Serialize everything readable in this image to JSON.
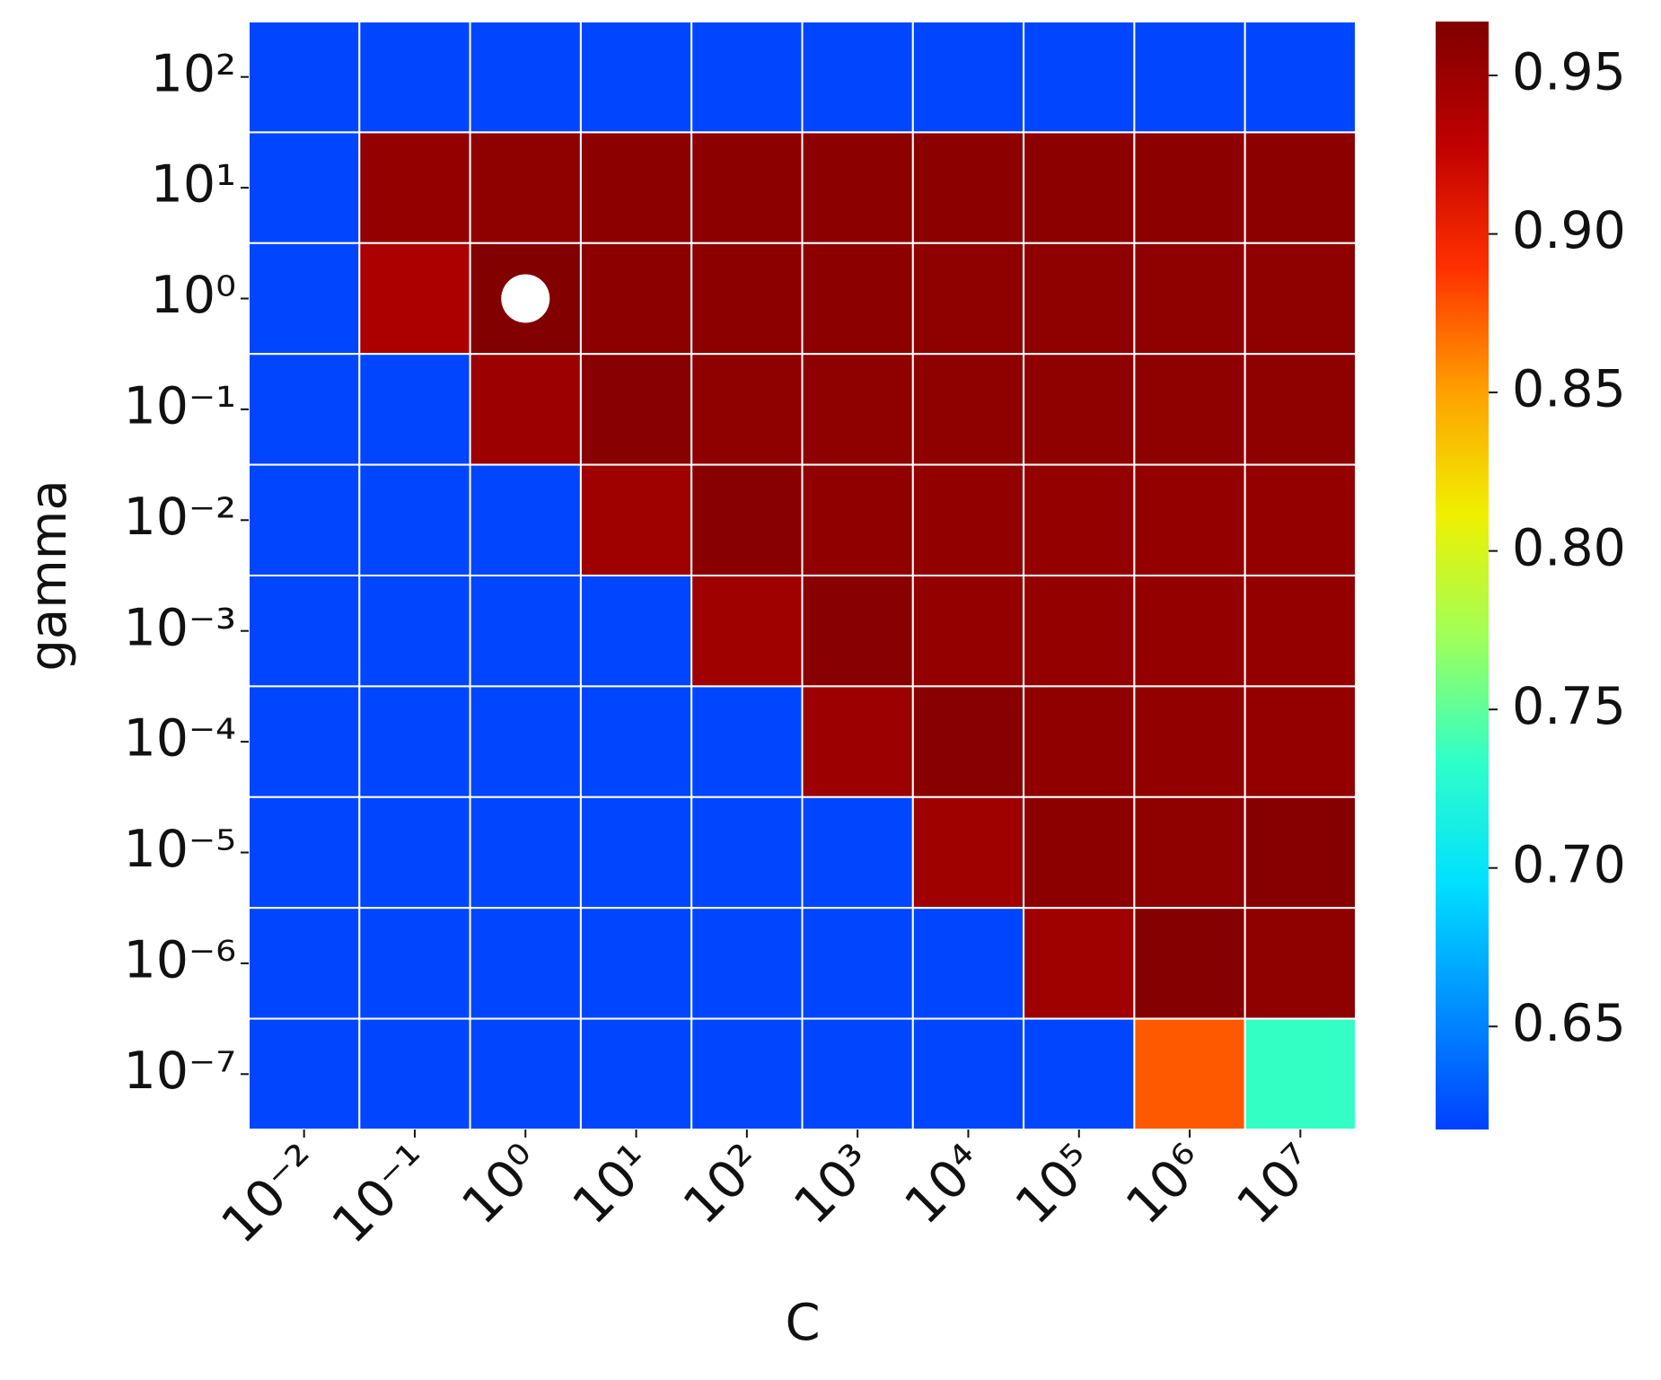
{
  "chart_data": {
    "type": "heatmap",
    "x_label": "C",
    "y_label": "gamma",
    "x_categories": [
      "10⁻²",
      "10⁻¹",
      "10⁰",
      "10¹",
      "10²",
      "10³",
      "10⁴",
      "10⁵",
      "10⁶",
      "10⁷"
    ],
    "y_categories": [
      "10²",
      "10¹",
      "10⁰",
      "10⁻¹",
      "10⁻²",
      "10⁻³",
      "10⁻⁴",
      "10⁻⁵",
      "10⁻⁶",
      "10⁻⁷"
    ],
    "values": [
      [
        0.62,
        0.62,
        0.62,
        0.62,
        0.62,
        0.62,
        0.62,
        0.62,
        0.62,
        0.62
      ],
      [
        0.62,
        0.955,
        0.958,
        0.96,
        0.96,
        0.96,
        0.96,
        0.96,
        0.96,
        0.96
      ],
      [
        0.62,
        0.94,
        0.966,
        0.96,
        0.96,
        0.96,
        0.958,
        0.958,
        0.958,
        0.958
      ],
      [
        0.62,
        0.62,
        0.95,
        0.962,
        0.958,
        0.958,
        0.958,
        0.958,
        0.958,
        0.958
      ],
      [
        0.62,
        0.62,
        0.62,
        0.948,
        0.962,
        0.957,
        0.956,
        0.955,
        0.955,
        0.955
      ],
      [
        0.62,
        0.62,
        0.62,
        0.62,
        0.948,
        0.962,
        0.955,
        0.955,
        0.955,
        0.955
      ],
      [
        0.62,
        0.62,
        0.62,
        0.62,
        0.62,
        0.95,
        0.962,
        0.957,
        0.956,
        0.955
      ],
      [
        0.62,
        0.62,
        0.62,
        0.62,
        0.62,
        0.62,
        0.948,
        0.96,
        0.958,
        0.963
      ],
      [
        0.62,
        0.62,
        0.62,
        0.62,
        0.62,
        0.62,
        0.62,
        0.948,
        0.964,
        0.958
      ],
      [
        0.62,
        0.62,
        0.62,
        0.62,
        0.62,
        0.62,
        0.62,
        0.62,
        0.875,
        0.735
      ]
    ],
    "vlim": [
      0.6175,
      0.967
    ],
    "colorbar_ticks": [
      0.65,
      {
        "value": 0.7,
        "label": "0.70"
      },
      0.75,
      {
        "value": 0.8,
        "label": "0.80"
      },
      0.85,
      {
        "value": 0.9,
        "label": "0.90"
      },
      0.95
    ],
    "colorscale": [
      "#0040ff",
      "#0090ff",
      "#00e0ff",
      "#30ffc8",
      "#a0ff58",
      "#f0f000",
      "#ffa000",
      "#ff3000",
      "#c00000",
      "#800000"
    ]
  }
}
